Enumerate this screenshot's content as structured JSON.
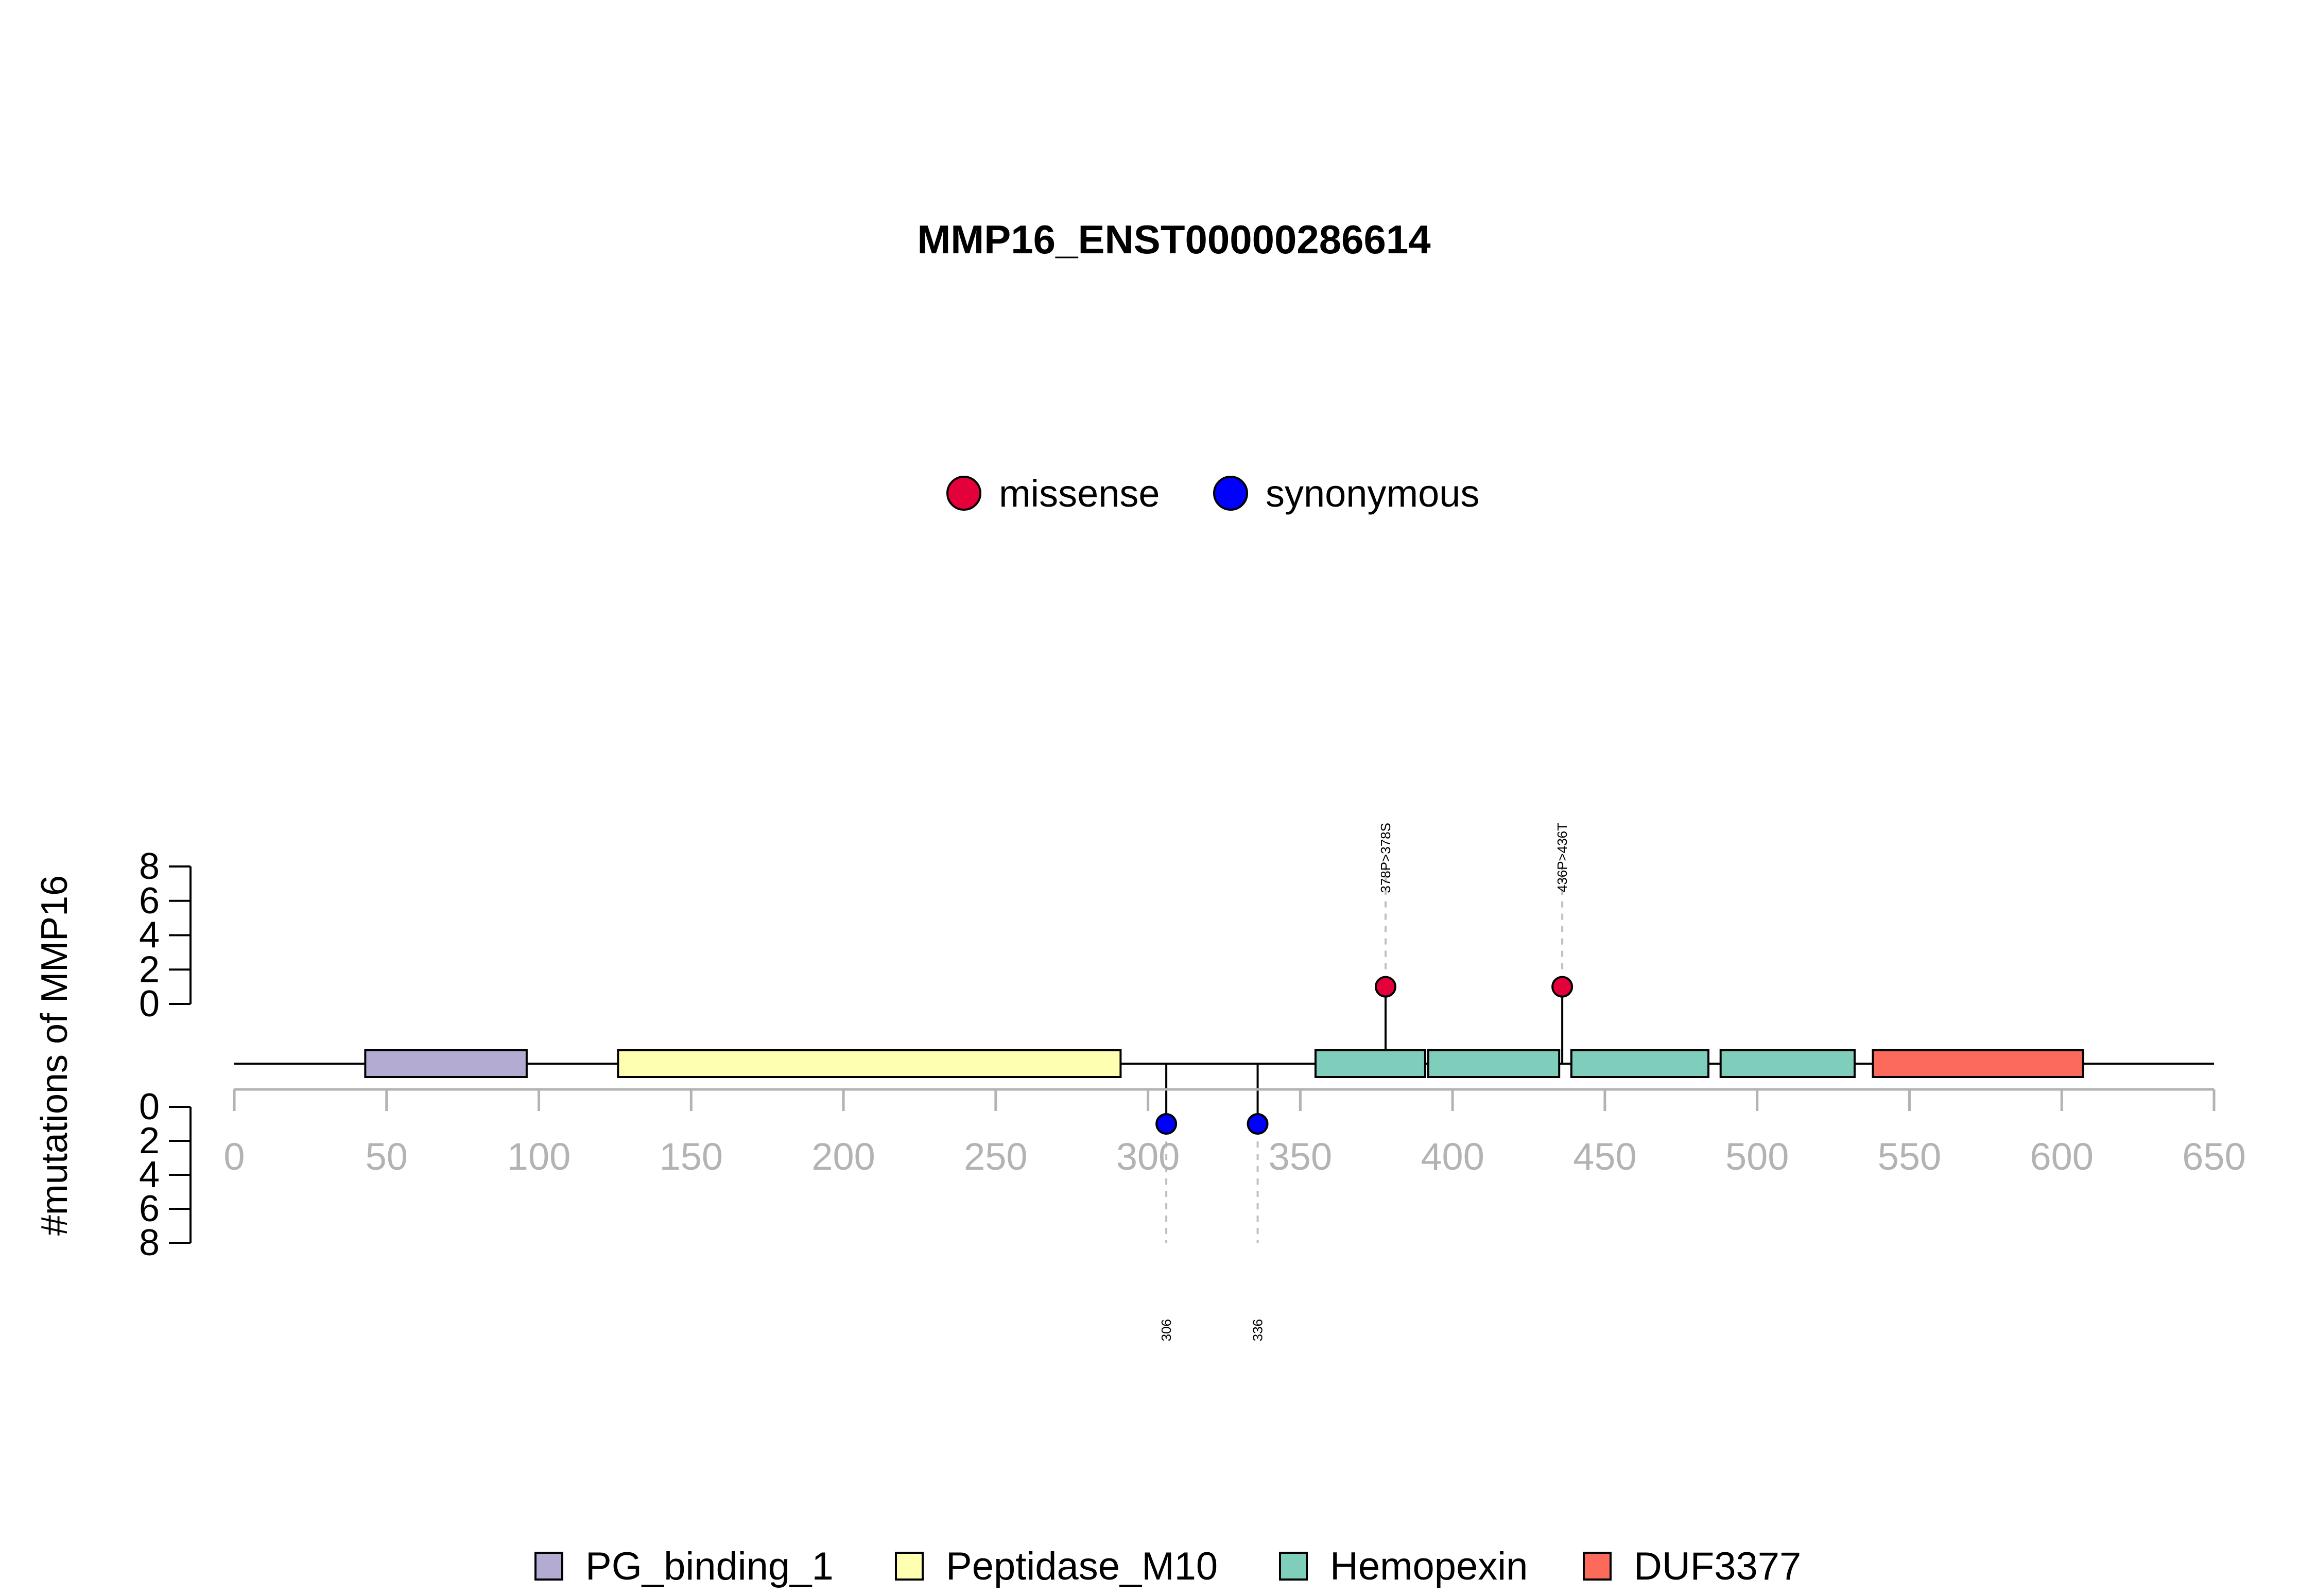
{
  "chart_data": {
    "type": "lollipop",
    "title": "MMP16_ENST00000286614",
    "ylabel": "#mutations of MMP16",
    "xlim": [
      0,
      650
    ],
    "x_ticks": [
      0,
      50,
      100,
      150,
      200,
      250,
      300,
      350,
      400,
      450,
      500,
      550,
      600,
      650
    ],
    "y_ticks": [
      0,
      2,
      4,
      6,
      8
    ],
    "ylim": [
      0,
      8
    ],
    "mutation_legend": [
      {
        "label": "missense",
        "color": "#e4003a"
      },
      {
        "label": "synonymous",
        "color": "#0000ff"
      }
    ],
    "domain_legend": [
      {
        "label": "PG_binding_1",
        "color": "#b3abd2"
      },
      {
        "label": "Peptidase_M10",
        "color": "#ffffb2"
      },
      {
        "label": "Hemopexin",
        "color": "#7fcdbb"
      },
      {
        "label": "DUF3377",
        "color": "#fb6a5a"
      }
    ],
    "domains": [
      {
        "name": "PG_binding_1",
        "start": 43,
        "end": 96
      },
      {
        "name": "Peptidase_M10",
        "start": 126,
        "end": 291
      },
      {
        "name": "Hemopexin",
        "start": 355,
        "end": 391
      },
      {
        "name": "Hemopexin",
        "start": 392,
        "end": 435
      },
      {
        "name": "Hemopexin",
        "start": 439,
        "end": 484
      },
      {
        "name": "Hemopexin",
        "start": 488,
        "end": 532
      },
      {
        "name": "DUF3377",
        "start": 538,
        "end": 607
      }
    ],
    "mutations": [
      {
        "position": 378,
        "count": 1,
        "type": "missense",
        "label": "378P>378S",
        "side": "top"
      },
      {
        "position": 436,
        "count": 1,
        "type": "missense",
        "label": "436P>436T",
        "side": "top"
      },
      {
        "position": 306,
        "count": 1,
        "type": "synonymous",
        "label": "306",
        "side": "bottom"
      },
      {
        "position": 336,
        "count": 1,
        "type": "synonymous",
        "label": "336",
        "side": "bottom"
      }
    ]
  }
}
